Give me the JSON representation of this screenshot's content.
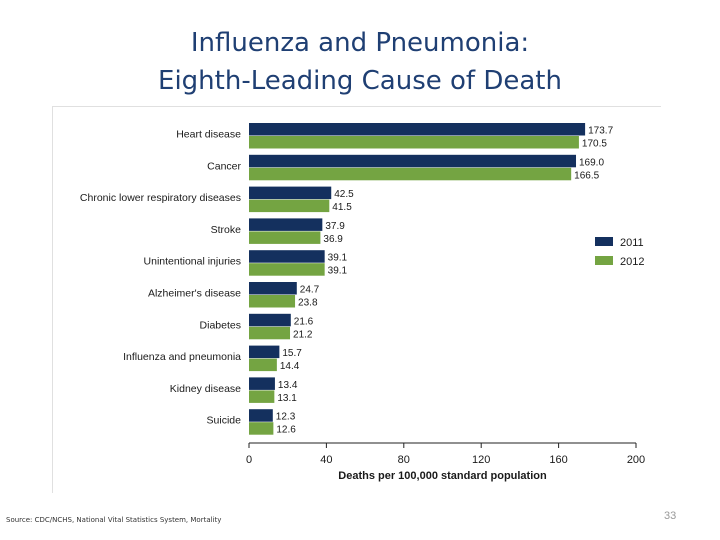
{
  "slide": {
    "title_line1": "Influenza and Pneumonia:",
    "title_line2": "Eighth-Leading Cause of Death",
    "source": "Source: CDC/NCHS, National Vital Statistics System, Mortality",
    "page_number": "33"
  },
  "chart_data": {
    "type": "bar",
    "orientation": "horizontal",
    "title": "",
    "xlabel": "Deaths per 100,000 standard population",
    "ylabel": "",
    "xlim": [
      0,
      200
    ],
    "xticks": [
      0,
      40,
      80,
      120,
      160,
      200
    ],
    "grid": false,
    "legend_position": "right",
    "categories": [
      "Heart disease",
      "Cancer",
      "Chronic lower respiratory diseases",
      "Stroke",
      "Unintentional injuries",
      "Alzheimer's disease",
      "Diabetes",
      "Influenza and pneumonia",
      "Kidney disease",
      "Suicide"
    ],
    "series": [
      {
        "name": "2011",
        "color": "#14305e",
        "values": [
          173.7,
          169.0,
          42.5,
          37.9,
          39.1,
          24.7,
          21.6,
          15.7,
          13.4,
          12.3
        ]
      },
      {
        "name": "2012",
        "color": "#74a442",
        "values": [
          170.5,
          166.5,
          41.5,
          36.9,
          39.1,
          23.8,
          21.2,
          14.4,
          13.1,
          12.6
        ]
      }
    ]
  }
}
